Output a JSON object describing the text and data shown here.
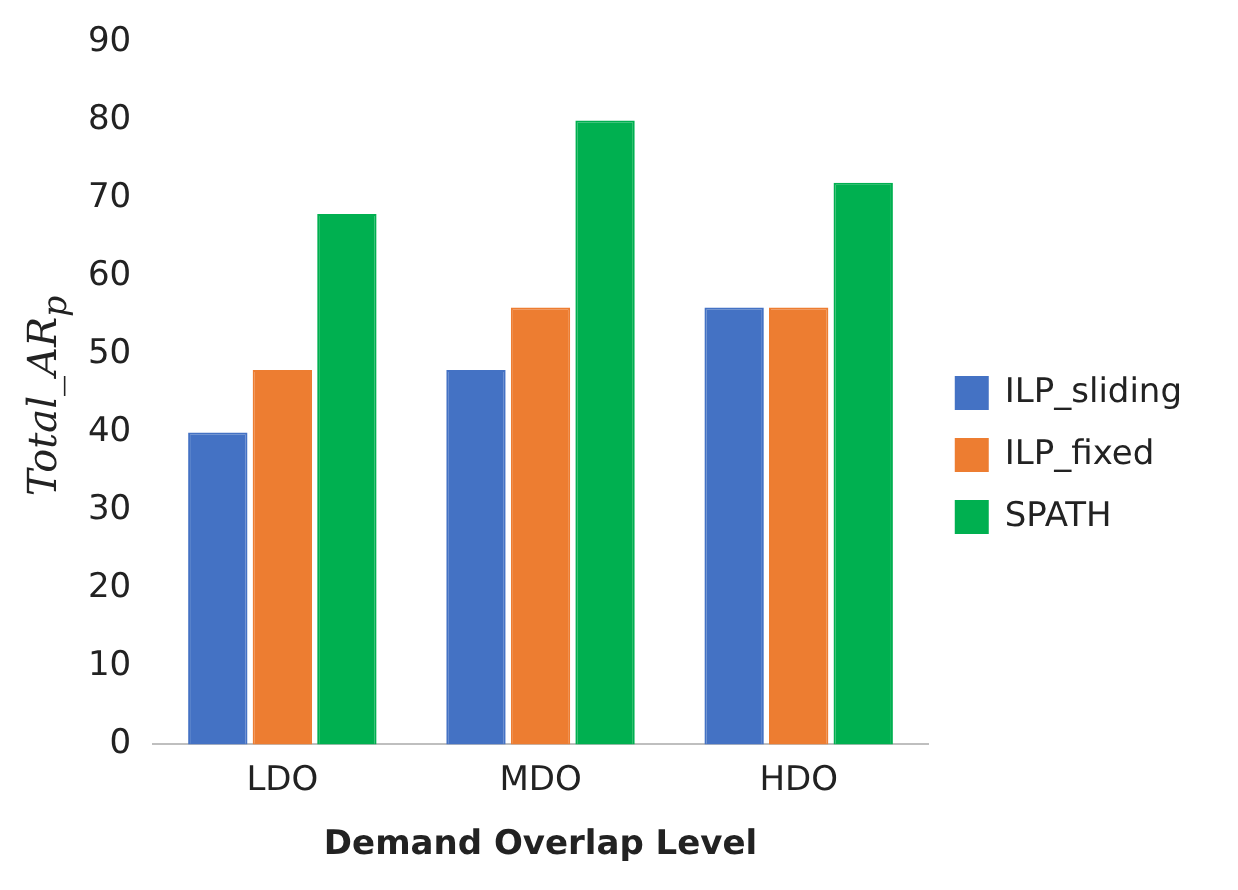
{
  "chart_data": {
    "type": "bar",
    "xlabel": "Demand Overlap Level",
    "ylabel": "Total_AR$_{p}$",
    "categories": [
      "LDO",
      "MDO",
      "HDO"
    ],
    "series": [
      {
        "name": "ILP_sliding",
        "color": "#4472c4",
        "values": [
          40,
          48,
          56
        ]
      },
      {
        "name": "ILP_fixed",
        "color": "#ed7d31",
        "values": [
          48,
          56,
          56
        ]
      },
      {
        "name": "SPATH",
        "color": "#00b050",
        "values": [
          68,
          80,
          72
        ]
      }
    ],
    "ylim": [
      0,
      90
    ],
    "yticks": [
      0,
      10,
      20,
      30,
      40,
      50,
      60,
      70,
      80,
      90
    ],
    "grid": false,
    "legend": "right"
  }
}
